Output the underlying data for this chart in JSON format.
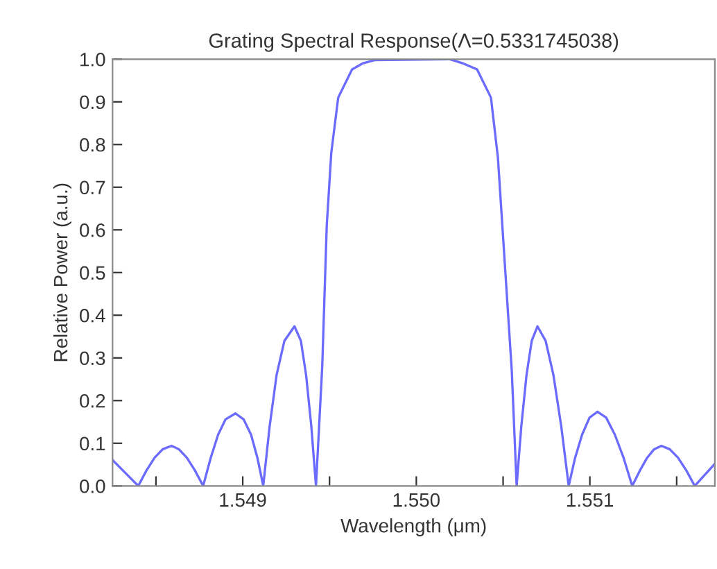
{
  "chart_data": {
    "type": "line",
    "title": "Grating Spectral Response(Λ=0.5331745038)",
    "xlabel": "Wavelength (μm)",
    "ylabel": "Relative Power (a.u.)",
    "series": [
      {
        "color": "#6b6bff",
        "x": [
          1.548252,
          1.548325,
          1.548398,
          1.548445,
          1.548492,
          1.548539,
          1.54859,
          1.548632,
          1.548678,
          1.548725,
          1.548772,
          1.548815,
          1.548858,
          1.548901,
          1.548958,
          1.549005,
          1.549048,
          1.549085,
          1.549118,
          1.549155,
          1.549195,
          1.54924,
          1.549298,
          1.549335,
          1.549365,
          1.549395,
          1.549422,
          1.549458,
          1.549484,
          1.54951,
          1.54955,
          1.54963,
          1.54969,
          1.549764,
          1.55019,
          1.55027,
          1.55035,
          1.55043,
          1.55047,
          1.55051,
          1.55055,
          1.550578,
          1.550605,
          1.550635,
          1.550665,
          1.550698,
          1.550745,
          1.55079,
          1.550835,
          1.550878,
          1.550915,
          1.550955,
          1.550998,
          1.551044,
          1.551094,
          1.551144,
          1.551194,
          1.551244,
          1.551288,
          1.55133,
          1.55137,
          1.551412,
          1.55146,
          1.551508,
          1.551556,
          1.551604,
          1.55172
        ],
        "values": [
          0.06,
          0.03,
          0.0,
          0.036,
          0.066,
          0.086,
          0.094,
          0.086,
          0.066,
          0.036,
          0.0,
          0.065,
          0.12,
          0.156,
          0.17,
          0.156,
          0.12,
          0.065,
          0.0,
          0.14,
          0.26,
          0.34,
          0.374,
          0.34,
          0.26,
          0.14,
          0.0,
          0.28,
          0.61,
          0.78,
          0.91,
          0.976,
          0.99,
          0.998,
          1.0,
          0.99,
          0.976,
          0.91,
          0.77,
          0.52,
          0.27,
          0.0,
          0.14,
          0.26,
          0.34,
          0.374,
          0.34,
          0.26,
          0.14,
          0.0,
          0.066,
          0.12,
          0.16,
          0.174,
          0.16,
          0.12,
          0.066,
          0.0,
          0.036,
          0.066,
          0.086,
          0.094,
          0.086,
          0.066,
          0.036,
          0.0,
          0.052
        ]
      }
    ],
    "xlim": [
      1.54825,
      1.55172
    ],
    "ylim": [
      0.0,
      1.0
    ],
    "xticks": [
      {
        "value": 1.5485,
        "label": null
      },
      {
        "value": 1.549,
        "label": "1.549"
      },
      {
        "value": 1.5495,
        "label": null
      },
      {
        "value": 1.55,
        "label": "1.550"
      },
      {
        "value": 1.5505,
        "label": null
      },
      {
        "value": 1.551,
        "label": "1.551"
      },
      {
        "value": 1.5515,
        "label": null
      }
    ],
    "yticks": [
      {
        "value": 0.0,
        "label": "0.0"
      },
      {
        "value": 0.1,
        "label": "0.1"
      },
      {
        "value": 0.2,
        "label": "0.2"
      },
      {
        "value": 0.3,
        "label": "0.3"
      },
      {
        "value": 0.4,
        "label": "0.4"
      },
      {
        "value": 0.5,
        "label": "0.5"
      },
      {
        "value": 0.6,
        "label": "0.6"
      },
      {
        "value": 0.7,
        "label": "0.7"
      },
      {
        "value": 0.8,
        "label": "0.8"
      },
      {
        "value": 0.9,
        "label": "0.9"
      },
      {
        "value": 1.0,
        "label": "1.0"
      }
    ],
    "grid": false,
    "marker": "none",
    "line_style": "solid"
  }
}
